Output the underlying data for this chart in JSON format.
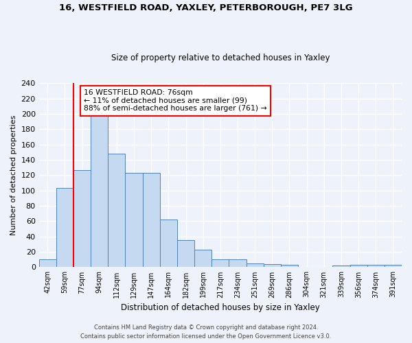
{
  "title1": "16, WESTFIELD ROAD, YAXLEY, PETERBOROUGH, PE7 3LG",
  "title2": "Size of property relative to detached houses in Yaxley",
  "xlabel": "Distribution of detached houses by size in Yaxley",
  "ylabel": "Number of detached properties",
  "categories": [
    "42sqm",
    "59sqm",
    "77sqm",
    "94sqm",
    "112sqm",
    "129sqm",
    "147sqm",
    "164sqm",
    "182sqm",
    "199sqm",
    "217sqm",
    "234sqm",
    "251sqm",
    "269sqm",
    "286sqm",
    "304sqm",
    "321sqm",
    "339sqm",
    "356sqm",
    "374sqm",
    "391sqm"
  ],
  "values": [
    10,
    103,
    127,
    197,
    148,
    123,
    123,
    62,
    35,
    23,
    10,
    10,
    5,
    4,
    3,
    0,
    0,
    2,
    3,
    3,
    3
  ],
  "bar_color": "#c5d9f1",
  "bar_edge_color": "#4f81bd",
  "annotation_text": "16 WESTFIELD ROAD: 76sqm\n← 11% of detached houses are smaller (99)\n88% of semi-detached houses are larger (761) →",
  "annotation_box_color": "white",
  "annotation_box_edge_color": "red",
  "footer1": "Contains HM Land Registry data © Crown copyright and database right 2024.",
  "footer2": "Contains public sector information licensed under the Open Government Licence v3.0.",
  "ylim": [
    0,
    240
  ],
  "yticks": [
    0,
    20,
    40,
    60,
    80,
    100,
    120,
    140,
    160,
    180,
    200,
    220,
    240
  ],
  "bg_color": "#eef2fa",
  "grid_color": "white"
}
